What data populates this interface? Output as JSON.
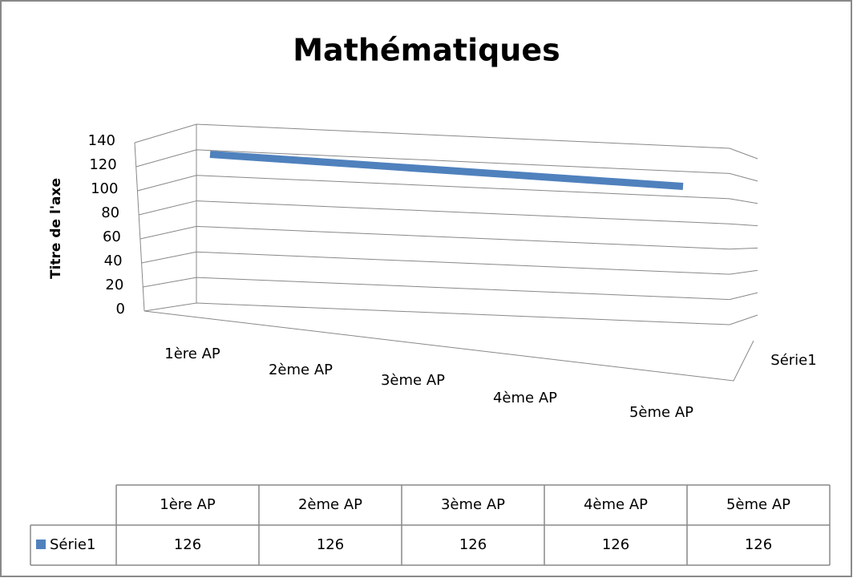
{
  "chart_data": {
    "type": "area",
    "title": "Mathématiques",
    "y_axis_label": "Titre de l'axe",
    "categories": [
      "1ère AP",
      "2ème AP",
      "3ème AP",
      "4ème AP",
      "5ème AP"
    ],
    "series": [
      {
        "name": "Série1",
        "color": "#4f81bd",
        "values": [
          126,
          126,
          126,
          126,
          126
        ]
      }
    ],
    "ylim": [
      0,
      140
    ],
    "yticks": [
      0,
      20,
      40,
      60,
      80,
      100,
      120,
      140
    ],
    "grid": true
  }
}
